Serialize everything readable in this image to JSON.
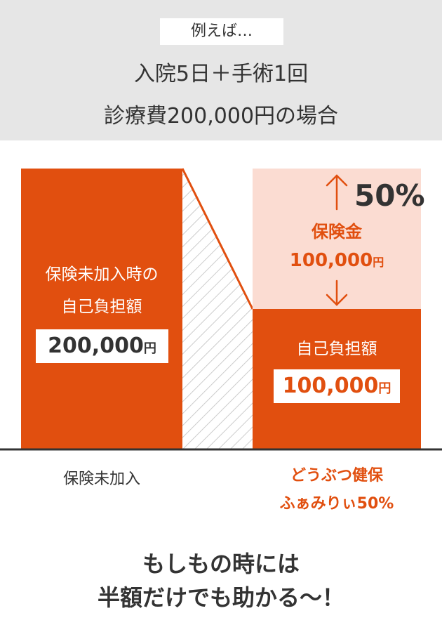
{
  "header": {
    "tag": "例えば…",
    "line1": "入院5日＋手術1回",
    "line2": "診療費200,000円の場合"
  },
  "left_bar": {
    "label_line1": "保険未加入時の",
    "label_line2": "自己負担額",
    "amount": "200,000",
    "unit": "円",
    "value": 200000
  },
  "right_bar": {
    "insurance_label": "保険金",
    "insurance_amount": "100,000",
    "insurance_unit": "円",
    "insurance_value": 100000,
    "percent": "50%",
    "self_label": "自己負担額",
    "self_amount": "100,000",
    "self_unit": "円",
    "self_value": 100000
  },
  "categories": {
    "left": "保険未加入",
    "right_line1": "どうぶつ健保",
    "right_line2": "ふぁみりぃ50%"
  },
  "footer": {
    "line1": "もしもの時には",
    "line2": "半額だけでも助かる〜！"
  },
  "colors": {
    "orange": "#e14f0f",
    "light_orange": "#fbdcd2",
    "header_bg": "#e6e6e6",
    "text": "#333333"
  }
}
